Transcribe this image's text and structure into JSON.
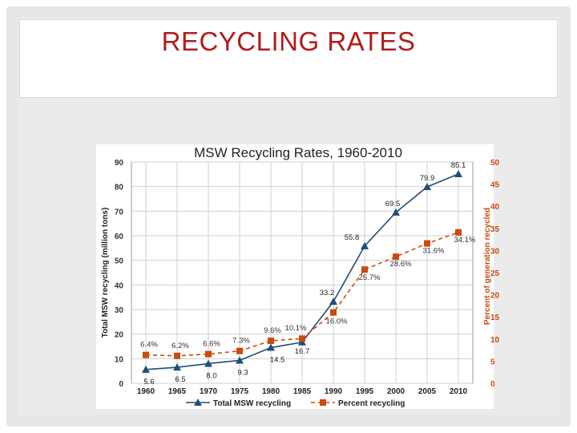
{
  "slide": {
    "title": "RECYCLING RATES"
  },
  "colors": {
    "title": "#b01c1c",
    "total_series": "#1f4e79",
    "percent_series": "#cc4a0c",
    "left_axis_text": "#333333",
    "right_axis_text": "#cc4a0c"
  },
  "chart_data": {
    "type": "line",
    "title": "MSW Recycling Rates, 1960-2010",
    "xlabel": "",
    "ylabel": "Total MSW recycling (million tons)",
    "y2label": "Percent of generation recycled",
    "categories": [
      "1960",
      "1965",
      "1970",
      "1975",
      "1980",
      "1985",
      "1990",
      "1995",
      "2000",
      "2005",
      "2010"
    ],
    "ylim": [
      0,
      90
    ],
    "yticks": [
      "0",
      "10",
      "20",
      "30",
      "40",
      "50",
      "60",
      "70",
      "80",
      "90"
    ],
    "y2lim": [
      0,
      50
    ],
    "y2ticks": [
      "0",
      "5",
      "10",
      "15",
      "20",
      "25",
      "30",
      "35",
      "40",
      "45",
      "50"
    ],
    "grid": true,
    "legend_position": "bottom",
    "series": [
      {
        "name": "Total MSW recycling",
        "axis": "left",
        "marker": "triangle",
        "style": "solid",
        "values": [
          5.6,
          6.5,
          8.0,
          9.3,
          14.5,
          16.7,
          33.2,
          55.8,
          69.5,
          79.9,
          85.1
        ],
        "labels": [
          "5.6",
          "6.5",
          "8.0",
          "9.3",
          "14.5",
          "16.7",
          "33.2",
          "55.8",
          "69.5",
          "79.9",
          "85.1"
        ]
      },
      {
        "name": "Percent recycling",
        "axis": "right",
        "marker": "square",
        "style": "dashed",
        "values": [
          6.4,
          6.2,
          6.6,
          7.3,
          9.6,
          10.1,
          16.0,
          25.7,
          28.6,
          31.6,
          34.1
        ],
        "labels": [
          "6.4%",
          "6.2%",
          "6.6%",
          "7.3%",
          "9.6%",
          "10.1%",
          "16.0%",
          "25.7%",
          "28.6%",
          "31.6%",
          "34.1%"
        ]
      }
    ]
  }
}
